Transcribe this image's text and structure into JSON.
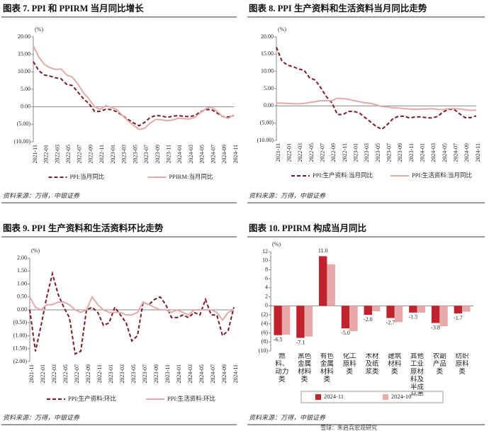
{
  "chart_data": [
    {
      "type": "line",
      "title": "图表 7.   PPI 和 PPIRM 当月同比增长",
      "unit": "(%)",
      "source": "资料来源：万得，中银证券",
      "categories": [
        "2021-11",
        null,
        "2022-01",
        null,
        "2022-03",
        null,
        "2022-05",
        null,
        "2022-07",
        null,
        "2022-09",
        null,
        "2022-11",
        null,
        "2023-01",
        null,
        "2023-03",
        null,
        "2023-05",
        null,
        "2023-07",
        null,
        "2023-09",
        null,
        "2023-11",
        null,
        "2024-01",
        null,
        "2024-03",
        null,
        "2024-05",
        null,
        "2024-07",
        null,
        "2024-09",
        null,
        "2024-11"
      ],
      "series": [
        {
          "name": "PPI:当月同比",
          "color": "#7b1a28",
          "line_style": "dashed",
          "values": [
            12.9,
            10.3,
            9.1,
            8.8,
            8.3,
            8.0,
            6.4,
            6.1,
            4.2,
            2.3,
            0.9,
            -1.3,
            -1.3,
            -0.7,
            -0.8,
            -1.4,
            -2.5,
            -3.6,
            -4.6,
            -5.4,
            -4.4,
            -3.0,
            -2.5,
            -2.6,
            -3.0,
            -2.7,
            -2.5,
            -2.7,
            -2.8,
            -2.5,
            -1.4,
            -0.8,
            -0.8,
            -1.8,
            -2.8,
            -2.9,
            -2.5
          ]
        },
        {
          "name": "PPIRM:当月同比",
          "color": "#e3aaa8",
          "line_style": "solid",
          "values": [
            17.4,
            14.2,
            12.1,
            11.2,
            10.7,
            10.8,
            9.1,
            8.5,
            6.5,
            4.0,
            2.2,
            0.0,
            -0.7,
            0.3,
            -0.1,
            -0.8,
            -2.5,
            -4.0,
            -5.3,
            -6.5,
            -6.1,
            -4.6,
            -3.6,
            -3.7,
            -4.0,
            -3.8,
            -3.3,
            -3.4,
            -3.5,
            -3.0,
            -1.7,
            -0.5,
            -0.1,
            -1.3,
            -2.8,
            -3.3,
            -2.3
          ]
        }
      ],
      "ylim": [
        -10,
        20
      ],
      "yticks": [
        {
          "value": 20,
          "label": "20.00"
        },
        {
          "value": 15,
          "label": "15.00"
        },
        {
          "value": 10,
          "label": "10.00"
        },
        {
          "value": 5,
          "label": "5.00"
        },
        {
          "value": 0,
          "label": "0.00"
        },
        {
          "value": -5,
          "label": "(5.00)"
        },
        {
          "value": -10,
          "label": "(10.00)"
        }
      ]
    },
    {
      "type": "line",
      "title": "图表 8. PPI 生产资料和生活资料当月同比走势",
      "unit": "(%)",
      "source": "资料来源：万得，中银证券",
      "categories": [
        "2021-11",
        null,
        "2022-01",
        null,
        "2022-03",
        null,
        "2022-05",
        null,
        "2022-07",
        null,
        "2022-09",
        null,
        "2022-11",
        null,
        "2023-01",
        null,
        "2023-03",
        null,
        "2023-05",
        null,
        "2023-07",
        null,
        "2023-09",
        null,
        "2023-11",
        null,
        "2024-01",
        null,
        "2024-03",
        null,
        "2024-05",
        null,
        "2024-07",
        null,
        "2024-09",
        null,
        "2024-11"
      ],
      "series": [
        {
          "name": "PPI:生产资料:当月同比",
          "color": "#7b1a28",
          "line_style": "dashed",
          "values": [
            17.0,
            13.0,
            11.8,
            11.4,
            10.7,
            10.3,
            8.1,
            7.5,
            5.2,
            2.7,
            0.9,
            -2.5,
            -2.5,
            -1.6,
            -1.6,
            -2.1,
            -3.4,
            -4.7,
            -6.0,
            -6.8,
            -5.4,
            -3.7,
            -3.0,
            -3.0,
            -3.5,
            -3.2,
            -3.2,
            -3.4,
            -3.5,
            -3.1,
            -1.8,
            -1.0,
            -1.0,
            -2.3,
            -3.4,
            -3.4,
            -2.9
          ]
        },
        {
          "name": "PPI:生活资料:当月同比",
          "color": "#e3aaa8",
          "line_style": "solid",
          "values": [
            0.8,
            0.8,
            0.7,
            0.6,
            0.6,
            0.7,
            1.0,
            1.2,
            1.5,
            1.5,
            1.5,
            2.2,
            2.1,
            1.9,
            1.5,
            1.2,
            0.9,
            0.7,
            0.3,
            -0.2,
            -0.3,
            -0.6,
            -0.6,
            -0.8,
            -0.9,
            -1.0,
            -0.9,
            -0.9,
            -0.8,
            -1.0,
            -1.1,
            -0.8,
            -0.8,
            -0.9,
            -1.1,
            -1.3,
            -1.2
          ]
        }
      ],
      "ylim": [
        -10,
        20
      ],
      "yticks": [
        {
          "value": 20,
          "label": "20.00"
        },
        {
          "value": 15,
          "label": "15.00"
        },
        {
          "value": 10,
          "label": "10.00"
        },
        {
          "value": 5,
          "label": "5.00"
        },
        {
          "value": 0,
          "label": "0.00"
        },
        {
          "value": -5,
          "label": "(5.00)"
        },
        {
          "value": -10,
          "label": "(10.00)"
        }
      ]
    },
    {
      "type": "line",
      "title": "图表 9. PPI 生产资料和生活资料环比走势",
      "unit": "(%)",
      "source": "资料来源：万得，中银证券",
      "categories": [
        "2021-11",
        null,
        "2022-01",
        null,
        "2022-03",
        null,
        "2022-05",
        null,
        "2022-07",
        null,
        "2022-09",
        null,
        "2022-11",
        null,
        "2023-01",
        null,
        "2023-03",
        null,
        "2023-05",
        null,
        "2023-07",
        null,
        "2023-09",
        null,
        "2023-11",
        null,
        "2024-01",
        null,
        "2024-03",
        null,
        "2024-05",
        null,
        "2024-07",
        null,
        "2024-09",
        null,
        "2024-11"
      ],
      "series": [
        {
          "name": "PPI:生产资料:环比",
          "color": "#7b1a28",
          "line_style": "dashed",
          "values": [
            0.0,
            -1.6,
            -0.6,
            0.5,
            1.4,
            0.6,
            0.1,
            -0.3,
            -1.7,
            -1.6,
            0.0,
            0.1,
            -0.1,
            -0.6,
            -0.5,
            0.1,
            -0.2,
            -0.5,
            -1.2,
            -1.0,
            0.3,
            0.2,
            0.4,
            0.5,
            0.2,
            -0.3,
            -0.3,
            -0.2,
            -0.3,
            -0.1,
            -0.2,
            0.4,
            -0.2,
            -0.2,
            -1.0,
            -0.8,
            0.1
          ]
        },
        {
          "name": "PPI:生活资料:环比",
          "color": "#e3aaa8",
          "line_style": "solid",
          "values": [
            0.5,
            0.1,
            0.0,
            0.2,
            0.2,
            0.3,
            0.3,
            0.2,
            0.0,
            -0.1,
            0.0,
            0.5,
            0.2,
            0.0,
            -0.1,
            -0.1,
            -0.1,
            -0.2,
            -0.2,
            -0.1,
            0.3,
            0.2,
            0.1,
            0.0,
            0.0,
            -0.1,
            0.0,
            -0.1,
            -0.2,
            0.0,
            0.0,
            0.0,
            0.0,
            -0.1,
            -0.4,
            -0.1,
            0.0
          ]
        }
      ],
      "ylim": [
        -2,
        2
      ],
      "yticks": [
        {
          "value": 2,
          "label": "2.00"
        },
        {
          "value": 1.5,
          "label": "1.50"
        },
        {
          "value": 1,
          "label": "1.00"
        },
        {
          "value": 0.5,
          "label": "0.50"
        },
        {
          "value": 0,
          "label": "0.00"
        },
        {
          "value": -0.5,
          "label": "(0.50)"
        },
        {
          "value": -1,
          "label": "(1.00)"
        },
        {
          "value": -1.5,
          "label": "(1.50)"
        },
        {
          "value": -2,
          "label": "(2.00)"
        }
      ]
    },
    {
      "type": "bar",
      "title": "图表 10. PPIRM 构成当月同比",
      "unit": "(%)",
      "source": "资料来源：万得，中银证券",
      "categories": [
        "燃料、动力类",
        "黑色金属材料类",
        "有色金属材料类",
        "化工原料类",
        "木材及纸浆类",
        "建筑材料类",
        "其他工业原材料及半成品类",
        "农副产品类",
        "纺织原料类"
      ],
      "series": [
        {
          "name": "2024-11",
          "color": "#c1232e",
          "values": [
            -6.5,
            -7.1,
            11.0,
            -5.0,
            -2.0,
            -2.7,
            -1.5,
            -3.8,
            -1.7
          ],
          "value_labels": [
            "-6.5",
            "-7.1",
            "11.0",
            "-5.0",
            "-2.0",
            "-2.7",
            "-1.5",
            "-3.8",
            "-1.7"
          ]
        },
        {
          "name": "2024-10",
          "color": "#e8a9a9",
          "values": [
            -6.4,
            -6.8,
            9.2,
            -5.6,
            -1.2,
            -3.6,
            -1.5,
            -4.5,
            -1.3
          ]
        }
      ],
      "ylim": [
        -10,
        12
      ],
      "yticks": [
        12,
        10,
        8,
        6,
        4,
        2,
        0,
        {
          "value": -2,
          "label": "(2)"
        },
        {
          "value": -4,
          "label": "(4)"
        },
        {
          "value": -6,
          "label": "(6)"
        },
        {
          "value": -8,
          "label": "(8)"
        },
        {
          "value": -10,
          "label": "(10)"
        }
      ]
    }
  ],
  "watermark": "雪球：朱启兵宏观研究"
}
